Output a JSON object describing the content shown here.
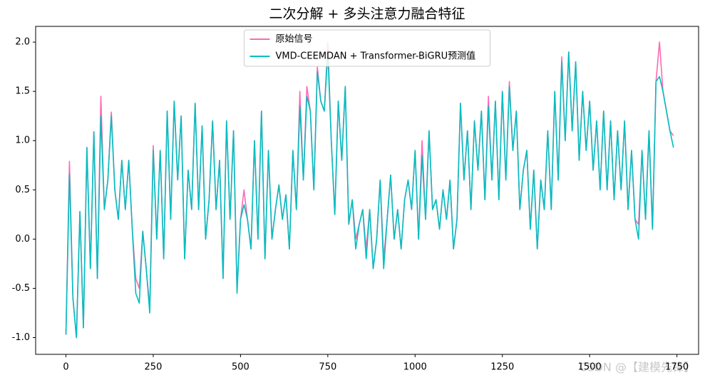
{
  "chart_data": {
    "type": "line",
    "title": "二次分解 + 多头注意力融合特征",
    "watermark": "CSDN @【建模先锋】",
    "legend": "upper center",
    "grid": false,
    "xlim": [
      -86.8,
      1812
    ],
    "ylim": [
      -1.17,
      2.16
    ],
    "xticks": [
      0,
      250,
      500,
      750,
      1000,
      1250,
      1500,
      1750
    ],
    "yticks": [
      {
        "value": -1,
        "label": "-1.0"
      },
      {
        "value": -0.5,
        "label": "-0.5"
      },
      {
        "value": 0,
        "label": "0.0"
      },
      {
        "value": 0.5,
        "label": "0.5"
      },
      {
        "value": 1,
        "label": "1.0"
      },
      {
        "value": 1.5,
        "label": "1.5"
      },
      {
        "value": 2,
        "label": "2.0"
      }
    ],
    "x": [
      0,
      10,
      20,
      30,
      40,
      50,
      60,
      70,
      80,
      90,
      100,
      110,
      120,
      130,
      140,
      150,
      160,
      170,
      180,
      190,
      200,
      210,
      220,
      230,
      240,
      250,
      260,
      270,
      280,
      290,
      300,
      310,
      320,
      330,
      340,
      350,
      360,
      370,
      380,
      390,
      400,
      410,
      420,
      430,
      440,
      450,
      460,
      470,
      480,
      490,
      500,
      510,
      520,
      530,
      540,
      550,
      560,
      570,
      580,
      590,
      600,
      610,
      620,
      630,
      640,
      650,
      660,
      670,
      680,
      690,
      700,
      710,
      720,
      730,
      740,
      750,
      760,
      770,
      780,
      790,
      800,
      810,
      820,
      830,
      840,
      850,
      860,
      870,
      880,
      890,
      900,
      910,
      920,
      930,
      940,
      950,
      960,
      970,
      980,
      990,
      1000,
      1010,
      1020,
      1030,
      1040,
      1050,
      1060,
      1070,
      1080,
      1090,
      1100,
      1110,
      1120,
      1130,
      1140,
      1150,
      1160,
      1170,
      1180,
      1190,
      1200,
      1210,
      1220,
      1230,
      1240,
      1250,
      1260,
      1270,
      1280,
      1290,
      1300,
      1310,
      1320,
      1330,
      1340,
      1350,
      1360,
      1370,
      1380,
      1390,
      1400,
      1410,
      1420,
      1430,
      1440,
      1450,
      1460,
      1470,
      1480,
      1490,
      1500,
      1510,
      1520,
      1530,
      1540,
      1550,
      1560,
      1570,
      1580,
      1590,
      1600,
      1610,
      1620,
      1630,
      1640,
      1650,
      1660,
      1670,
      1680,
      1690,
      1700,
      1710,
      1720,
      1730,
      1740
    ],
    "series": [
      {
        "name": "原始信号",
        "color": "#ff69b4",
        "values": [
          -0.97,
          0.79,
          -0.6,
          -1.0,
          0.28,
          -0.9,
          0.93,
          -0.3,
          1.09,
          -0.4,
          1.45,
          0.3,
          0.6,
          1.29,
          0.5,
          0.2,
          0.8,
          0.3,
          0.8,
          0.1,
          -0.4,
          -0.5,
          0.08,
          -0.3,
          -0.7,
          0.95,
          0.0,
          0.9,
          -0.2,
          1.3,
          0.2,
          1.4,
          0.6,
          1.25,
          -0.2,
          0.7,
          0.3,
          1.38,
          0.3,
          1.15,
          0.0,
          0.4,
          1.2,
          0.3,
          0.8,
          -0.4,
          1.2,
          0.2,
          1.1,
          -0.5,
          0.2,
          0.5,
          0.2,
          -0.1,
          1.0,
          0.0,
          1.3,
          -0.2,
          0.9,
          0.0,
          0.3,
          0.55,
          0.2,
          0.45,
          -0.1,
          0.9,
          0.3,
          1.5,
          0.6,
          1.55,
          1.3,
          0.5,
          1.75,
          1.4,
          1.3,
          2.0,
          1.0,
          0.25,
          1.4,
          0.8,
          1.55,
          0.15,
          0.4,
          0.0,
          0.15,
          0.3,
          -0.1,
          0.3,
          -0.3,
          0.0,
          0.6,
          -0.2,
          0.2,
          0.65,
          0.0,
          0.3,
          -0.1,
          0.4,
          0.6,
          0.3,
          0.9,
          0.0,
          1.0,
          0.2,
          1.1,
          0.3,
          0.4,
          0.1,
          0.5,
          0.2,
          0.6,
          -0.1,
          0.2,
          1.38,
          0.6,
          1.1,
          0.3,
          1.2,
          0.7,
          1.3,
          0.4,
          1.45,
          0.6,
          1.4,
          0.4,
          1.5,
          0.6,
          1.6,
          0.9,
          1.3,
          0.3,
          0.7,
          0.9,
          0.1,
          0.7,
          -0.1,
          0.6,
          0.3,
          1.1,
          0.3,
          1.5,
          0.6,
          1.85,
          1.0,
          1.9,
          1.1,
          1.8,
          0.8,
          1.5,
          0.9,
          1.4,
          0.7,
          1.2,
          0.5,
          1.3,
          0.5,
          1.2,
          0.4,
          1.1,
          0.5,
          1.2,
          0.3,
          0.9,
          0.2,
          0.15,
          0.9,
          0.2,
          1.1,
          0.1,
          1.6,
          2.0,
          1.5,
          1.3,
          1.1,
          1.05
        ]
      },
      {
        "name": "VMD-CEEMDAN + Transformer-BiGRU预测值",
        "color": "#00bfc0",
        "values": [
          -0.97,
          0.66,
          -0.6,
          -1.0,
          0.28,
          -0.9,
          0.93,
          -0.3,
          1.09,
          -0.4,
          1.25,
          0.3,
          0.6,
          1.25,
          0.5,
          0.2,
          0.8,
          0.3,
          0.8,
          0.1,
          -0.55,
          -0.65,
          0.08,
          -0.3,
          -0.75,
          0.9,
          0.0,
          0.9,
          -0.2,
          1.3,
          0.2,
          1.4,
          0.6,
          1.25,
          -0.2,
          0.7,
          0.3,
          1.38,
          0.3,
          1.15,
          0.0,
          0.4,
          1.2,
          0.3,
          0.8,
          -0.4,
          1.2,
          0.2,
          1.1,
          -0.55,
          0.2,
          0.35,
          0.2,
          -0.1,
          1.0,
          0.0,
          1.3,
          -0.2,
          0.9,
          0.0,
          0.3,
          0.55,
          0.2,
          0.45,
          -0.1,
          0.9,
          0.3,
          1.35,
          0.6,
          1.45,
          1.3,
          0.5,
          1.7,
          1.4,
          1.3,
          1.9,
          1.0,
          0.25,
          1.4,
          0.8,
          1.55,
          0.15,
          0.4,
          -0.1,
          0.15,
          0.3,
          -0.2,
          0.3,
          -0.3,
          0.0,
          0.6,
          -0.3,
          0.2,
          0.65,
          0.0,
          0.3,
          -0.1,
          0.4,
          0.6,
          0.3,
          0.9,
          0.0,
          0.85,
          0.2,
          1.1,
          0.3,
          0.4,
          0.1,
          0.5,
          0.2,
          0.6,
          -0.1,
          0.2,
          1.38,
          0.6,
          1.1,
          0.3,
          1.2,
          0.7,
          1.3,
          0.4,
          1.35,
          0.6,
          1.4,
          0.4,
          1.5,
          0.6,
          1.55,
          0.9,
          1.3,
          0.3,
          0.7,
          0.9,
          0.1,
          0.7,
          -0.1,
          0.6,
          0.3,
          1.1,
          0.3,
          1.5,
          0.6,
          1.8,
          1.0,
          1.9,
          1.1,
          1.8,
          0.8,
          1.5,
          0.9,
          1.4,
          0.7,
          1.2,
          0.5,
          1.3,
          0.5,
          1.2,
          0.4,
          1.1,
          0.5,
          1.2,
          0.3,
          0.9,
          0.2,
          0.0,
          0.9,
          0.2,
          1.1,
          0.1,
          1.6,
          1.65,
          1.5,
          1.3,
          1.1,
          0.93
        ]
      }
    ]
  }
}
